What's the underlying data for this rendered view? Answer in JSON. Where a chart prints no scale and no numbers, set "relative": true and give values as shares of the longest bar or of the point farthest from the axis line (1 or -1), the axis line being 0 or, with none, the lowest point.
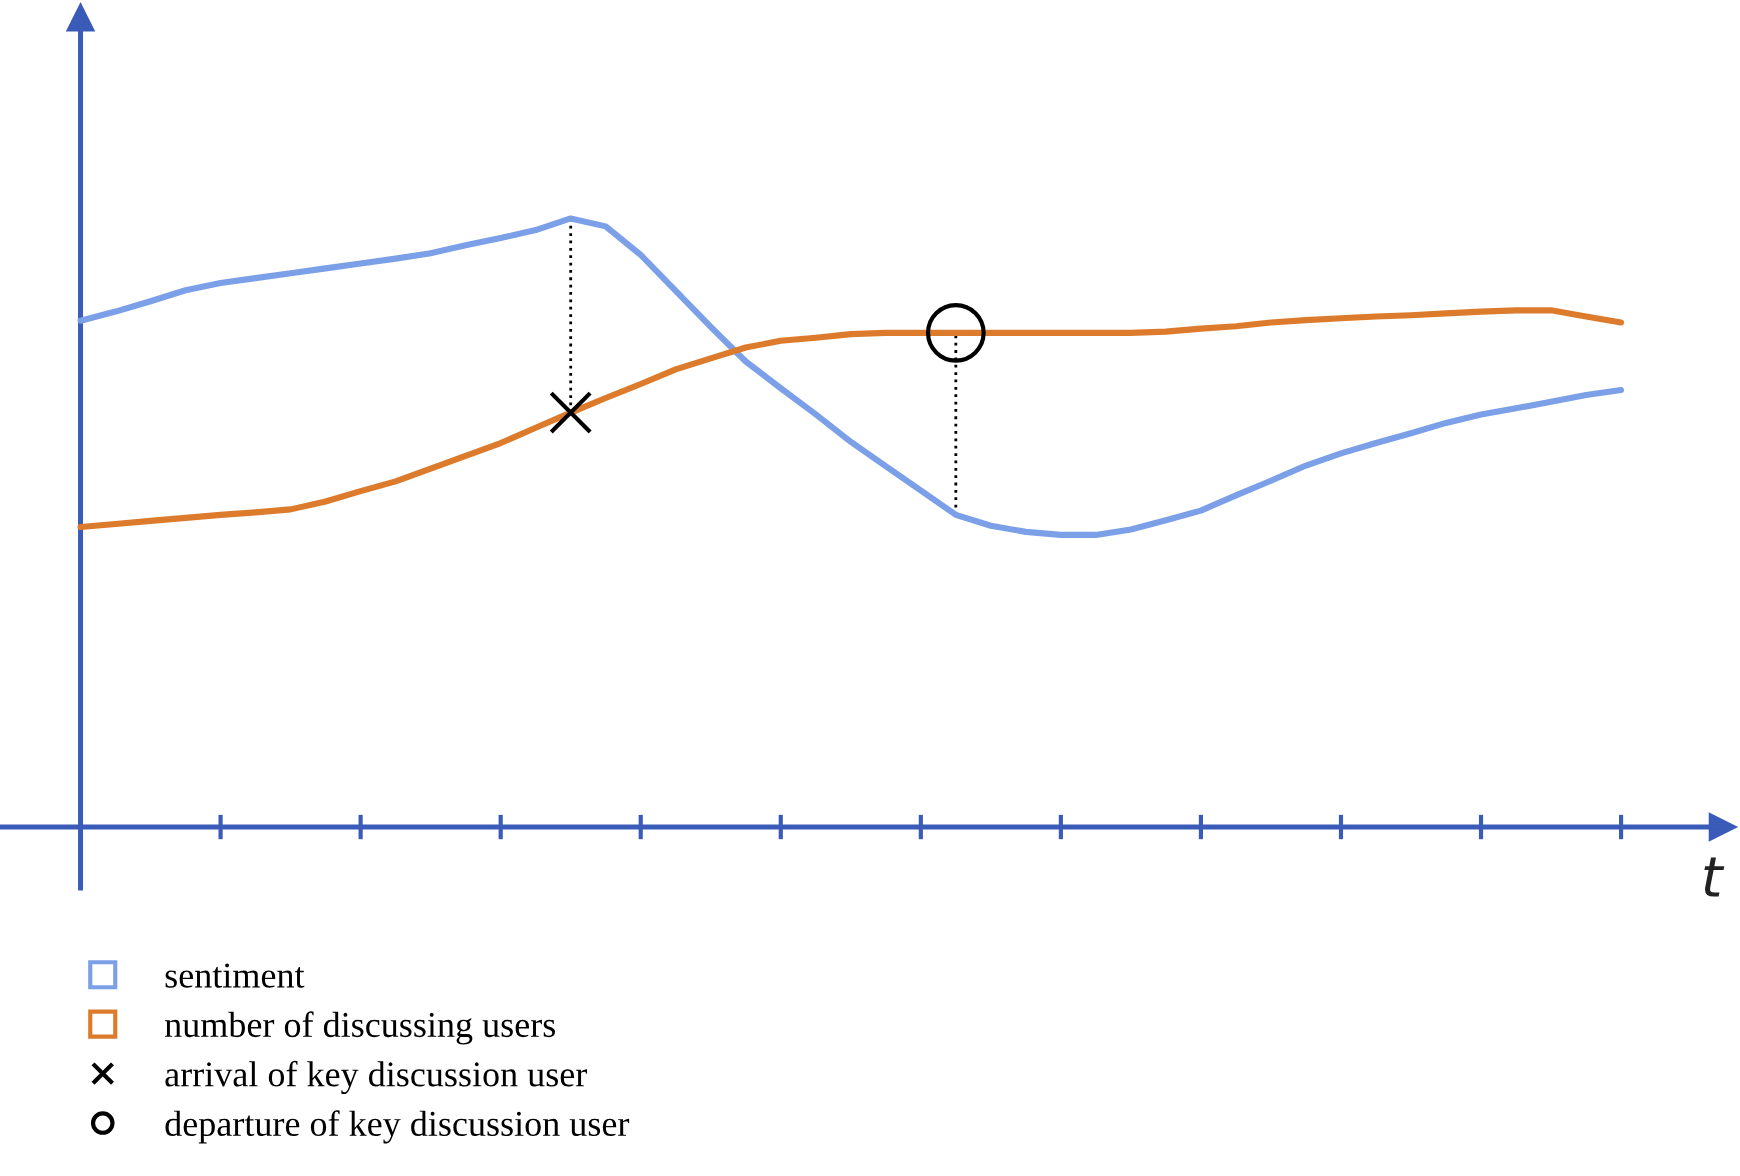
{
  "chart_data": {
    "type": "line",
    "xlabel": "t",
    "relative": true,
    "categories": [
      null,
      null,
      null,
      null,
      null,
      null,
      null,
      null,
      null,
      null,
      null,
      null,
      null,
      null,
      null,
      null,
      null,
      null,
      null,
      null,
      null,
      null,
      null,
      null,
      null,
      null,
      null,
      null,
      null,
      null,
      null,
      null,
      null,
      null,
      null,
      null,
      null,
      null,
      null,
      null,
      null,
      null,
      null,
      null,
      null
    ],
    "legend": "bottom",
    "marker": "none",
    "line_style": "solid",
    "series": [
      {
        "name": "sentiment",
        "color": "#7ba0e8",
        "values": [
          0.832,
          0.847,
          0.864,
          0.882,
          0.894,
          0.902,
          0.91,
          0.918,
          0.926,
          0.934,
          0.943,
          0.956,
          0.968,
          0.981,
          1.0,
          0.987,
          0.94,
          0.881,
          0.822,
          0.765,
          0.721,
          0.678,
          0.633,
          0.593,
          0.553,
          0.513,
          0.495,
          0.485,
          0.48,
          0.48,
          0.489,
          0.504,
          0.52,
          0.545,
          0.569,
          0.594,
          0.614,
          0.631,
          0.647,
          0.664,
          0.678,
          0.688,
          0.699,
          0.71,
          0.718
        ]
      },
      {
        "name": "number of discussing users",
        "color": "#dd7b2c",
        "values": [
          0.493,
          0.498,
          0.503,
          0.508,
          0.513,
          0.517,
          0.522,
          0.535,
          0.552,
          0.568,
          0.589,
          0.61,
          0.631,
          0.656,
          0.681,
          0.705,
          0.728,
          0.752,
          0.77,
          0.788,
          0.799,
          0.804,
          0.81,
          0.812,
          0.812,
          0.812,
          0.812,
          0.812,
          0.812,
          0.812,
          0.812,
          0.814,
          0.819,
          0.823,
          0.829,
          0.833,
          0.836,
          0.839,
          0.841,
          0.844,
          0.847,
          0.849,
          0.849,
          0.839,
          0.829
        ]
      }
    ],
    "annotations": [
      "arrival of key discussion user",
      "departure of key discussion user"
    ]
  }
}
